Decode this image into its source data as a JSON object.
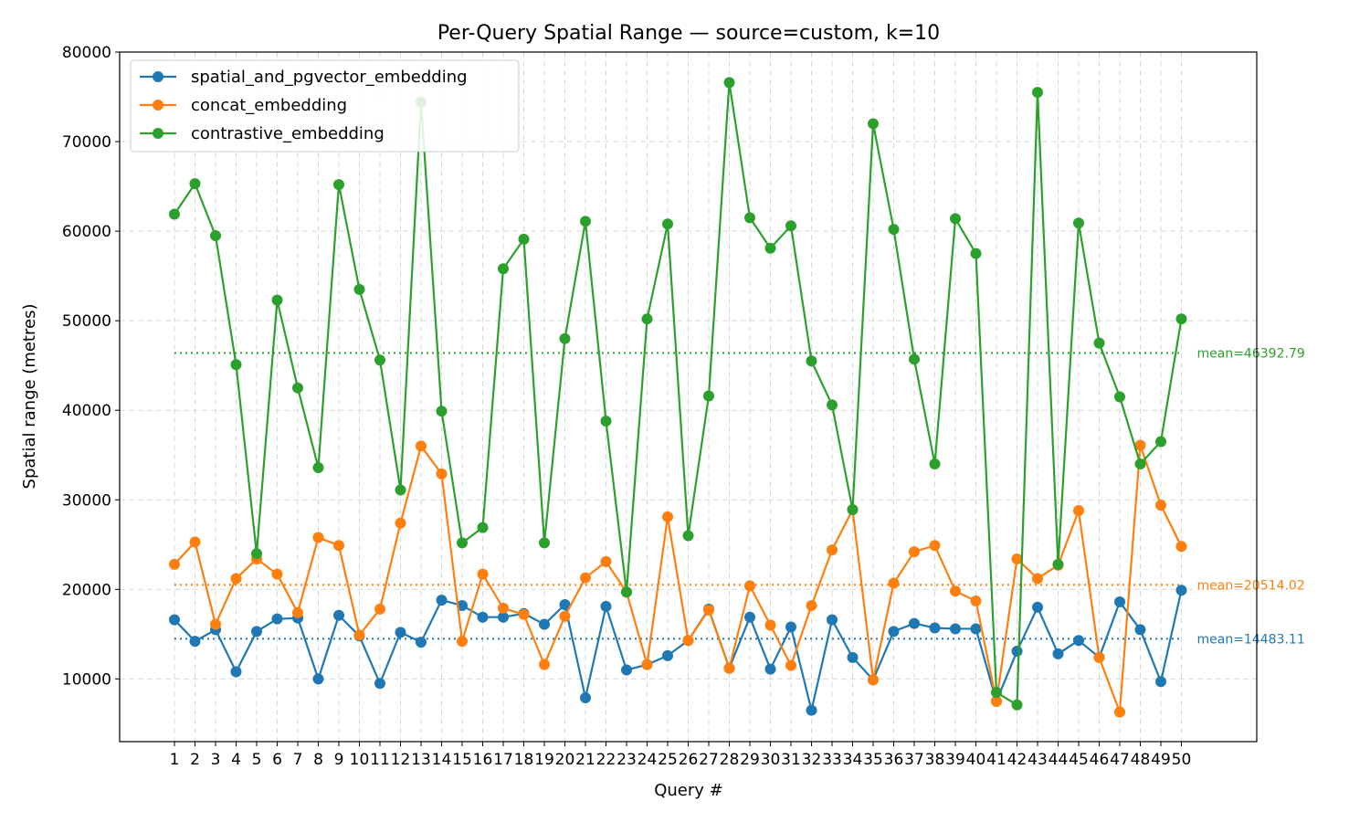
{
  "chart_data": {
    "type": "line",
    "title": "Per-Query Spatial Range — source=custom, k=10",
    "xlabel": "Query #",
    "ylabel": "Spatial range (metres)",
    "ylim": [
      3000,
      80000
    ],
    "yticks": [
      10000,
      20000,
      30000,
      40000,
      50000,
      60000,
      70000,
      80000
    ],
    "grid": true,
    "legend_position": "upper left",
    "x": [
      1,
      2,
      3,
      4,
      5,
      6,
      7,
      8,
      9,
      10,
      11,
      12,
      13,
      14,
      15,
      16,
      17,
      18,
      19,
      20,
      21,
      22,
      23,
      24,
      25,
      26,
      27,
      28,
      29,
      30,
      31,
      32,
      33,
      34,
      35,
      36,
      37,
      38,
      39,
      40,
      41,
      42,
      43,
      44,
      45,
      46,
      47,
      48,
      49,
      50
    ],
    "series": [
      {
        "name": "spatial_and_pgvector_embedding",
        "color": "#1f77b4",
        "mean_label": "mean=14483.11",
        "mean": 14483.11,
        "values": [
          16600,
          14200,
          15500,
          10800,
          15300,
          16700,
          16800,
          10000,
          17100,
          14800,
          9500,
          15200,
          14100,
          18800,
          18200,
          16900,
          16900,
          17300,
          16100,
          18300,
          7900,
          18100,
          11000,
          11600,
          12600,
          14300,
          17800,
          11200,
          16900,
          11100,
          15800,
          6500,
          16600,
          12400,
          9900,
          15300,
          16200,
          15700,
          15600,
          15600,
          7500,
          13100,
          18000,
          12800,
          14300,
          12400,
          18600,
          15500,
          9700,
          19900
        ]
      },
      {
        "name": "concat_embedding",
        "color": "#ff7f0e",
        "mean_label": "mean=20514.02",
        "mean": 20514.02,
        "values": [
          22800,
          25300,
          16100,
          21200,
          23400,
          21700,
          17400,
          25800,
          24900,
          14900,
          17800,
          27400,
          36000,
          32900,
          14200,
          21700,
          17900,
          17200,
          11600,
          17000,
          21300,
          23100,
          19700,
          11600,
          28100,
          14300,
          17700,
          11200,
          20400,
          16000,
          11500,
          18200,
          24400,
          28900,
          9900,
          20700,
          24200,
          24900,
          19800,
          18700,
          7500,
          23400,
          21200,
          22700,
          28800,
          12400,
          6300,
          36100,
          29400,
          24800
        ]
      },
      {
        "name": "contrastive_embedding",
        "color": "#2ca02c",
        "mean_label": "mean=46392.79",
        "mean": 46392.79,
        "values": [
          61900,
          65300,
          59500,
          45100,
          24000,
          52300,
          42500,
          33600,
          65200,
          53500,
          45600,
          31100,
          74400,
          39900,
          25200,
          26900,
          55800,
          59100,
          25200,
          48000,
          61100,
          38800,
          19700,
          50200,
          60800,
          26000,
          41600,
          76600,
          61500,
          58100,
          60600,
          45500,
          40600,
          28900,
          72000,
          60200,
          45700,
          34000,
          61400,
          57500,
          8500,
          7100,
          75500,
          22800,
          60900,
          47500,
          41500,
          34000,
          36500,
          50200
        ]
      }
    ]
  }
}
